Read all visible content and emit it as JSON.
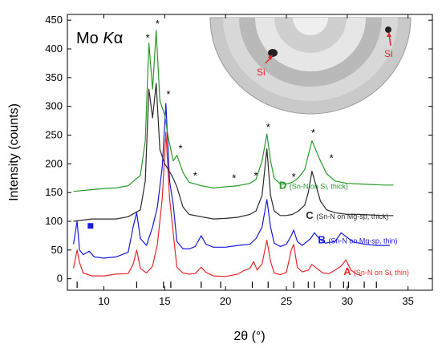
{
  "chart_data": {
    "type": "line",
    "title": "Mo Kα",
    "title_main": "Mo ",
    "title_italic": "K",
    "title_alpha": "α",
    "xlabel": "2θ (°)",
    "ylabel": "Intensity (counts)",
    "xlim": [
      7,
      37
    ],
    "ylim": [
      -20,
      460
    ],
    "xticks": [
      10,
      15,
      20,
      25,
      30,
      35
    ],
    "yticks": [
      0,
      50,
      100,
      150,
      200,
      250,
      300,
      350,
      400,
      450
    ],
    "grid": false,
    "legend_position": "inline labels near right end of each trace",
    "series": [
      {
        "name": "A",
        "annotation": "(Sn-N on Si, thin)",
        "color": "#e8282d",
        "x": [
          7.5,
          7.8,
          8.0,
          8.3,
          9.0,
          10.0,
          11.0,
          12.0,
          12.4,
          12.7,
          13.0,
          13.5,
          14.0,
          14.4,
          14.8,
          15.1,
          15.4,
          15.7,
          16.0,
          16.5,
          17.0,
          17.5,
          18.0,
          18.4,
          19.0,
          20.0,
          21.0,
          21.5,
          22.0,
          22.3,
          22.6,
          23.0,
          23.4,
          23.7,
          24.0,
          24.5,
          25.0,
          25.4,
          25.6,
          25.9,
          26.3,
          26.8,
          27.1,
          27.5,
          28.0,
          28.5,
          29.0,
          29.5,
          29.9,
          30.3,
          30.8,
          31.2
        ],
        "y": [
          18,
          50,
          28,
          10,
          5,
          5,
          8,
          9,
          25,
          50,
          18,
          10,
          22,
          60,
          140,
          255,
          140,
          80,
          20,
          10,
          8,
          9,
          20,
          11,
          5,
          4,
          8,
          14,
          18,
          30,
          15,
          26,
          67,
          30,
          10,
          7,
          11,
          50,
          60,
          20,
          12,
          15,
          25,
          18,
          10,
          9,
          15,
          22,
          33,
          15,
          8,
          5
        ]
      },
      {
        "name": "B",
        "annotation": "(Sn-N on Mg-sp, thin)",
        "color": "#1a1adc",
        "x": [
          7.5,
          7.8,
          8.0,
          8.3,
          8.8,
          9.2,
          10.0,
          11.0,
          12.0,
          12.4,
          12.7,
          13.0,
          13.5,
          14.0,
          14.4,
          14.8,
          15.1,
          15.4,
          15.7,
          16.0,
          16.5,
          17.0,
          17.5,
          18.0,
          18.4,
          19.0,
          20.0,
          21.0,
          22.0,
          22.5,
          23.0,
          23.4,
          23.7,
          24.0,
          24.5,
          25.0,
          25.4,
          25.6,
          25.9,
          26.3,
          27.0,
          27.3,
          27.7,
          28.2,
          29.0,
          29.5,
          30.0,
          30.5,
          31.5,
          32.5,
          33.5
        ],
        "y": [
          60,
          100,
          50,
          42,
          48,
          38,
          36,
          38,
          46,
          90,
          115,
          70,
          58,
          90,
          125,
          195,
          305,
          170,
          130,
          65,
          52,
          52,
          56,
          75,
          60,
          55,
          55,
          58,
          60,
          70,
          90,
          138,
          90,
          62,
          56,
          60,
          75,
          85,
          65,
          58,
          70,
          80,
          70,
          62,
          65,
          80,
          72,
          64,
          60,
          58,
          58
        ]
      },
      {
        "name": "C",
        "annotation": "(Sn-N on Mg-sp, thick)",
        "color": "#2a2a2a",
        "x": [
          7.5,
          9.0,
          10.0,
          11.0,
          12.0,
          13.0,
          13.4,
          13.7,
          14.0,
          14.3,
          14.6,
          15.0,
          15.3,
          15.7,
          16.0,
          16.5,
          17.0,
          18.0,
          19.0,
          20.0,
          21.0,
          22.0,
          22.5,
          23.0,
          23.4,
          23.7,
          24.0,
          24.5,
          25.0,
          25.5,
          26.0,
          26.5,
          26.8,
          27.1,
          27.4,
          27.8,
          28.3,
          29.0,
          30.0,
          31.0,
          32.0,
          33.0,
          33.8
        ],
        "y": [
          100,
          104,
          104,
          104,
          108,
          120,
          170,
          330,
          280,
          340,
          225,
          200,
          190,
          175,
          160,
          125,
          112,
          108,
          104,
          105,
          107,
          112,
          118,
          145,
          226,
          145,
          118,
          110,
          110,
          112,
          118,
          128,
          150,
          187,
          165,
          135,
          120,
          115,
          112,
          112,
          111,
          110,
          110
        ]
      },
      {
        "name": "D",
        "annotation": "(Sn-N on Si, thick)",
        "color": "#2a9a2a",
        "x": [
          7.5,
          9.0,
          10.0,
          11.0,
          12.0,
          13.0,
          13.4,
          13.7,
          14.0,
          14.3,
          14.6,
          15.0,
          15.3,
          15.7,
          16.0,
          16.5,
          17.0,
          18.0,
          19.0,
          20.0,
          21.0,
          22.0,
          22.5,
          23.0,
          23.4,
          23.7,
          24.0,
          24.5,
          25.0,
          25.5,
          26.0,
          26.5,
          26.8,
          27.1,
          27.4,
          27.8,
          28.3,
          29.0,
          30.0,
          31.0,
          32.0,
          33.0,
          33.8
        ],
        "y": [
          152,
          155,
          157,
          158,
          162,
          180,
          240,
          410,
          330,
          432,
          310,
          285,
          245,
          205,
          215,
          185,
          168,
          162,
          158,
          160,
          162,
          166,
          173,
          205,
          252,
          205,
          175,
          165,
          165,
          168,
          176,
          190,
          215,
          240,
          225,
          205,
          183,
          170,
          166,
          165,
          164,
          163,
          163
        ]
      }
    ],
    "reference_marks_x": [
      7.8,
      12.7,
      14.9,
      15.5,
      18.0,
      19.6,
      22.2,
      23.5,
      25.6,
      26.8,
      27.3,
      28.6,
      29.7,
      30.1,
      31.4,
      32.4
    ],
    "star_marks": [
      {
        "x": 13.6,
        "y": 420
      },
      {
        "x": 14.4,
        "y": 445
      },
      {
        "x": 15.3,
        "y": 322
      },
      {
        "x": 16.3,
        "y": 228
      },
      {
        "x": 17.5,
        "y": 180
      },
      {
        "x": 20.7,
        "y": 176
      },
      {
        "x": 22.5,
        "y": 180
      },
      {
        "x": 25.6,
        "y": 178
      },
      {
        "x": 23.5,
        "y": 265
      },
      {
        "x": 27.2,
        "y": 255
      },
      {
        "x": 28.7,
        "y": 211
      }
    ],
    "square_mark": {
      "x": 8.9,
      "y": 92
    }
  },
  "inset": {
    "label_left": "Si",
    "label_right": "Si"
  }
}
